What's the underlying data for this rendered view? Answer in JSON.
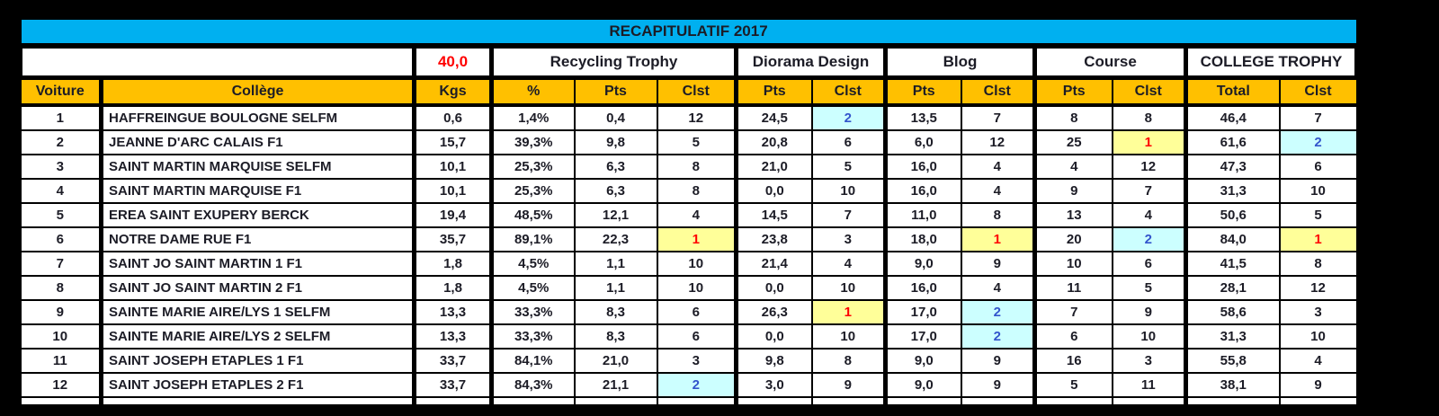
{
  "title": "RECAPITULATIF 2017",
  "header": {
    "kgs_target": "40,0",
    "groups": [
      {
        "label": "Recycling Trophy"
      },
      {
        "label": "Diorama Design"
      },
      {
        "label": "Blog"
      },
      {
        "label": "Course"
      },
      {
        "label": "COLLEGE TROPHY"
      }
    ],
    "columns": [
      "Voiture",
      "Collège",
      "Kgs",
      "%",
      "Pts",
      "Clst",
      "Pts",
      "Clst",
      "Pts",
      "Clst",
      "Pts",
      "Clst",
      "Total",
      "Clst"
    ]
  },
  "colors": {
    "title_band": "#00B0F0",
    "header_orange": "#FFC000",
    "rank1_bg": "#FFFF99",
    "rank1_text": "#FF0000",
    "rank2_bg": "#CCFFFF",
    "rank2_text": "#3355CC"
  },
  "rows": [
    {
      "voiture": "1",
      "college": "HAFFREINGUE BOULOGNE SELFM",
      "kgs": "0,6",
      "pct": "1,4%",
      "r_pts": "0,4",
      "r_clst": "12",
      "d_pts": "24,5",
      "d_clst": "2",
      "b_pts": "13,5",
      "b_clst": "7",
      "c_pts": "8",
      "c_clst": "8",
      "total": "46,4",
      "t_clst": "7"
    },
    {
      "voiture": "2",
      "college": "JEANNE D'ARC CALAIS F1",
      "kgs": "15,7",
      "pct": "39,3%",
      "r_pts": "9,8",
      "r_clst": "5",
      "d_pts": "20,8",
      "d_clst": "6",
      "b_pts": "6,0",
      "b_clst": "12",
      "c_pts": "25",
      "c_clst": "1",
      "total": "61,6",
      "t_clst": "2"
    },
    {
      "voiture": "3",
      "college": "SAINT MARTIN MARQUISE SELFM",
      "kgs": "10,1",
      "pct": "25,3%",
      "r_pts": "6,3",
      "r_clst": "8",
      "d_pts": "21,0",
      "d_clst": "5",
      "b_pts": "16,0",
      "b_clst": "4",
      "c_pts": "4",
      "c_clst": "12",
      "total": "47,3",
      "t_clst": "6"
    },
    {
      "voiture": "4",
      "college": "SAINT MARTIN MARQUISE F1",
      "kgs": "10,1",
      "pct": "25,3%",
      "r_pts": "6,3",
      "r_clst": "8",
      "d_pts": "0,0",
      "d_clst": "10",
      "b_pts": "16,0",
      "b_clst": "4",
      "c_pts": "9",
      "c_clst": "7",
      "total": "31,3",
      "t_clst": "10"
    },
    {
      "voiture": "5",
      "college": "EREA SAINT EXUPERY BERCK",
      "kgs": "19,4",
      "pct": "48,5%",
      "r_pts": "12,1",
      "r_clst": "4",
      "d_pts": "14,5",
      "d_clst": "7",
      "b_pts": "11,0",
      "b_clst": "8",
      "c_pts": "13",
      "c_clst": "4",
      "total": "50,6",
      "t_clst": "5"
    },
    {
      "voiture": "6",
      "college": "NOTRE DAME RUE F1",
      "kgs": "35,7",
      "pct": "89,1%",
      "r_pts": "22,3",
      "r_clst": "1",
      "d_pts": "23,8",
      "d_clst": "3",
      "b_pts": "18,0",
      "b_clst": "1",
      "c_pts": "20",
      "c_clst": "2",
      "total": "84,0",
      "t_clst": "1"
    },
    {
      "voiture": "7",
      "college": "SAINT JO SAINT MARTIN 1  F1",
      "kgs": "1,8",
      "pct": "4,5%",
      "r_pts": "1,1",
      "r_clst": "10",
      "d_pts": "21,4",
      "d_clst": "4",
      "b_pts": "9,0",
      "b_clst": "9",
      "c_pts": "10",
      "c_clst": "6",
      "total": "41,5",
      "t_clst": "8"
    },
    {
      "voiture": "8",
      "college": "SAINT JO SAINT MARTIN 2 F1",
      "kgs": "1,8",
      "pct": "4,5%",
      "r_pts": "1,1",
      "r_clst": "10",
      "d_pts": "0,0",
      "d_clst": "10",
      "b_pts": "16,0",
      "b_clst": "4",
      "c_pts": "11",
      "c_clst": "5",
      "total": "28,1",
      "t_clst": "12"
    },
    {
      "voiture": "9",
      "college": "SAINTE MARIE AIRE/LYS 1 SELFM",
      "kgs": "13,3",
      "pct": "33,3%",
      "r_pts": "8,3",
      "r_clst": "6",
      "d_pts": "26,3",
      "d_clst": "1",
      "b_pts": "17,0",
      "b_clst": "2",
      "c_pts": "7",
      "c_clst": "9",
      "total": "58,6",
      "t_clst": "3"
    },
    {
      "voiture": "10",
      "college": "SAINTE MARIE AIRE/LYS 2 SELFM",
      "kgs": "13,3",
      "pct": "33,3%",
      "r_pts": "8,3",
      "r_clst": "6",
      "d_pts": "0,0",
      "d_clst": "10",
      "b_pts": "17,0",
      "b_clst": "2",
      "c_pts": "6",
      "c_clst": "10",
      "total": "31,3",
      "t_clst": "10"
    },
    {
      "voiture": "11",
      "college": "SAINT JOSEPH ETAPLES 1 F1",
      "kgs": "33,7",
      "pct": "84,1%",
      "r_pts": "21,0",
      "r_clst": "3",
      "d_pts": "9,8",
      "d_clst": "8",
      "b_pts": "9,0",
      "b_clst": "9",
      "c_pts": "16",
      "c_clst": "3",
      "total": "55,8",
      "t_clst": "4"
    },
    {
      "voiture": "12",
      "college": "SAINT JOSEPH ETAPLES 2 F1",
      "kgs": "33,7",
      "pct": "84,3%",
      "r_pts": "21,1",
      "r_clst": "2",
      "d_pts": "3,0",
      "d_clst": "9",
      "b_pts": "9,0",
      "b_clst": "9",
      "c_pts": "5",
      "c_clst": "11",
      "total": "38,1",
      "t_clst": "9"
    }
  ]
}
